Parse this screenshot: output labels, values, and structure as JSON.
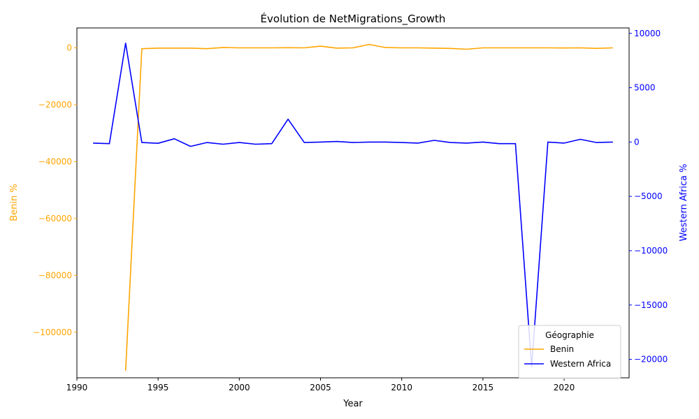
{
  "chart_data": {
    "type": "line",
    "title": "Évolution de NetMigrations_Growth",
    "xlabel": "Year",
    "ylabel_left": "Benin %",
    "ylabel_right": "Western Africa %",
    "xlim": [
      1990,
      2024
    ],
    "ylim_left": [
      -116000,
      7000
    ],
    "ylim_right": [
      -21700,
      10500
    ],
    "x_ticks": [
      1990,
      1995,
      2000,
      2005,
      2010,
      2015,
      2020
    ],
    "y_ticks_left": [
      0,
      -20000,
      -40000,
      -60000,
      -80000,
      -100000
    ],
    "y_ticks_right": [
      10000,
      5000,
      0,
      -5000,
      -10000,
      -15000,
      -20000
    ],
    "grid": false,
    "legend": {
      "title": "Géographie",
      "placement": "lower-right"
    },
    "x": [
      1991,
      1992,
      1993,
      1994,
      1995,
      1996,
      1997,
      1998,
      1999,
      2000,
      2001,
      2002,
      2003,
      2004,
      2005,
      2006,
      2007,
      2008,
      2009,
      2010,
      2011,
      2012,
      2013,
      2014,
      2015,
      2016,
      2017,
      2018,
      2019,
      2020,
      2021,
      2022,
      2023
    ],
    "series": [
      {
        "name": "Benin",
        "axis": "left",
        "color": "#ffa500",
        "start_index": 2,
        "values": [
          null,
          null,
          -113500,
          -300,
          -100,
          -100,
          -100,
          -300,
          100,
          0,
          0,
          0,
          50,
          0,
          600,
          -100,
          0,
          1200,
          100,
          0,
          0,
          -100,
          -200,
          -500,
          0,
          0,
          0,
          0,
          0,
          -50,
          0,
          -200,
          0
        ]
      },
      {
        "name": "Western Africa",
        "axis": "right",
        "color": "#0000ff",
        "values": [
          -100,
          -150,
          9100,
          -50,
          -120,
          300,
          -400,
          -50,
          -200,
          -50,
          -200,
          -150,
          2100,
          -50,
          0,
          50,
          -50,
          0,
          0,
          -50,
          -100,
          150,
          -50,
          -100,
          0,
          -150,
          -150,
          -20700,
          0,
          -100,
          250,
          -50,
          0
        ]
      }
    ]
  }
}
